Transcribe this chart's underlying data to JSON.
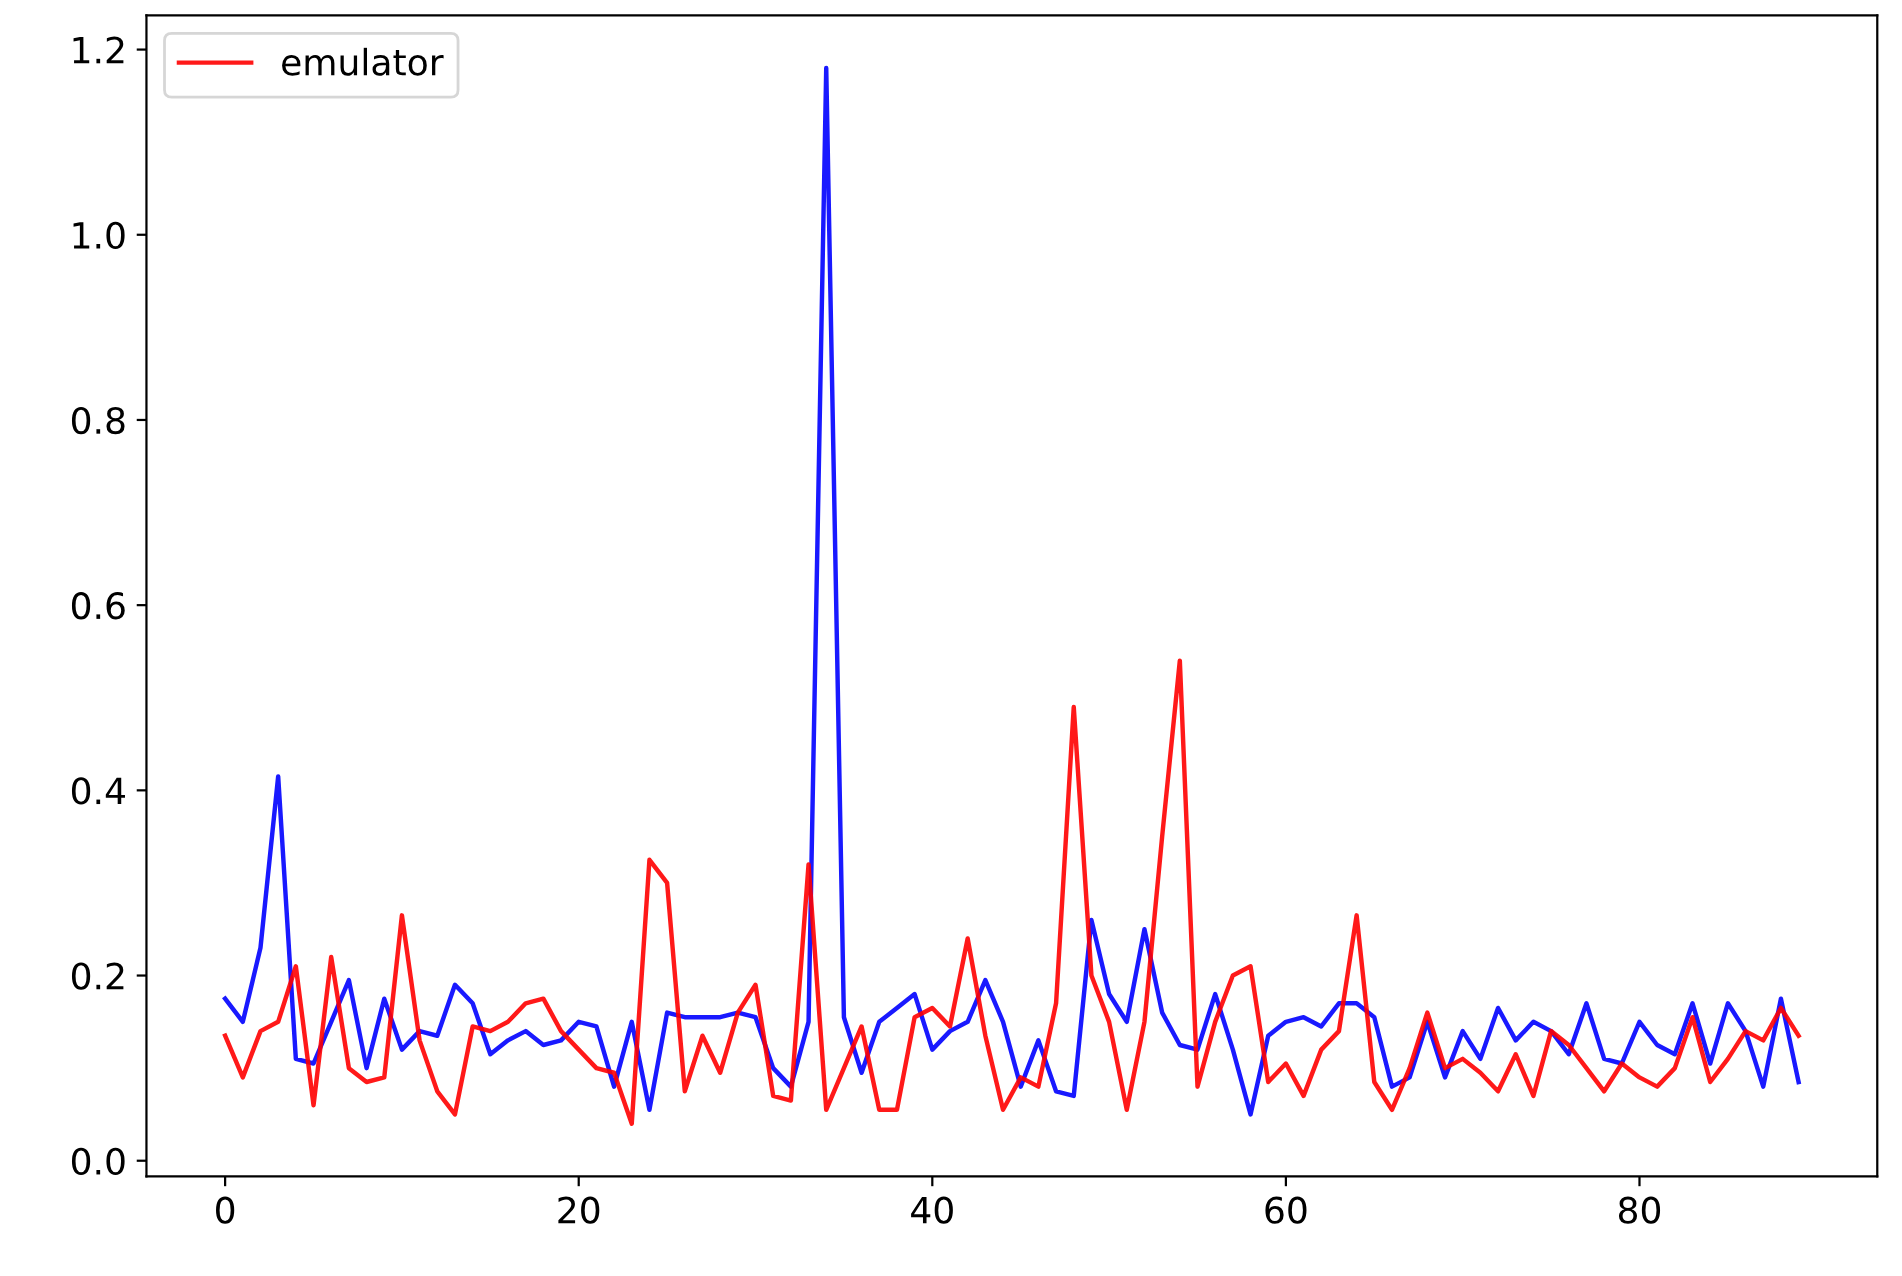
{
  "chart_data": {
    "type": "line",
    "x": [
      0,
      1,
      2,
      3,
      4,
      5,
      6,
      7,
      8,
      9,
      10,
      11,
      12,
      13,
      14,
      15,
      16,
      17,
      18,
      19,
      20,
      21,
      22,
      23,
      24,
      25,
      26,
      27,
      28,
      29,
      30,
      31,
      32,
      33,
      34,
      35,
      36,
      37,
      38,
      39,
      40,
      41,
      42,
      43,
      44,
      45,
      46,
      47,
      48,
      49,
      50,
      51,
      52,
      53,
      54,
      55,
      56,
      57,
      58,
      59,
      60,
      61,
      62,
      63,
      64,
      65,
      66,
      67,
      68,
      69,
      70,
      71,
      72,
      73,
      74,
      75,
      76,
      77,
      78,
      79,
      80,
      81,
      82,
      83,
      84,
      85,
      86,
      87,
      88,
      89
    ],
    "series": [
      {
        "color": "#0000ff",
        "values": [
          0.175,
          0.15,
          0.23,
          0.415,
          0.11,
          0.105,
          0.15,
          0.195,
          0.1,
          0.175,
          0.12,
          0.14,
          0.135,
          0.19,
          0.17,
          0.115,
          0.13,
          0.14,
          0.125,
          0.13,
          0.15,
          0.145,
          0.08,
          0.15,
          0.055,
          0.16,
          0.155,
          0.155,
          0.155,
          0.16,
          0.155,
          0.1,
          0.08,
          0.15,
          1.18,
          0.155,
          0.095,
          0.15,
          0.165,
          0.18,
          0.12,
          0.14,
          0.15,
          0.195,
          0.15,
          0.08,
          0.13,
          0.075,
          0.07,
          0.26,
          0.18,
          0.15,
          0.25,
          0.16,
          0.125,
          0.12,
          0.18,
          0.12,
          0.05,
          0.135,
          0.15,
          0.155,
          0.145,
          0.17,
          0.17,
          0.155,
          0.08,
          0.09,
          0.15,
          0.09,
          0.14,
          0.11,
          0.165,
          0.13,
          0.15,
          0.14,
          0.115,
          0.17,
          0.11,
          0.105,
          0.15,
          0.125,
          0.115,
          0.17,
          0.105,
          0.17,
          0.14,
          0.08,
          0.175,
          0.085
        ]
      },
      {
        "name": "emulator",
        "color": "#ff0000",
        "values": [
          0.135,
          0.09,
          0.14,
          0.15,
          0.21,
          0.06,
          0.22,
          0.1,
          0.085,
          0.09,
          0.265,
          0.13,
          0.075,
          0.05,
          0.145,
          0.14,
          0.15,
          0.17,
          0.175,
          0.14,
          0.12,
          0.1,
          0.095,
          0.04,
          0.325,
          0.3,
          0.075,
          0.135,
          0.095,
          0.16,
          0.19,
          0.07,
          0.065,
          0.32,
          0.055,
          0.1,
          0.145,
          0.055,
          0.055,
          0.155,
          0.165,
          0.145,
          0.24,
          0.135,
          0.055,
          0.09,
          0.08,
          0.17,
          0.49,
          0.2,
          0.15,
          0.055,
          0.15,
          0.35,
          0.54,
          0.08,
          0.15,
          0.2,
          0.21,
          0.085,
          0.105,
          0.07,
          0.12,
          0.14,
          0.265,
          0.085,
          0.055,
          0.1,
          0.16,
          0.1,
          0.11,
          0.095,
          0.075,
          0.115,
          0.07,
          0.14,
          0.125,
          0.1,
          0.075,
          0.105,
          0.09,
          0.08,
          0.1,
          0.155,
          0.085,
          0.11,
          0.14,
          0.13,
          0.165,
          0.135
        ]
      }
    ],
    "xlim": [
      -4.45,
      93.45
    ],
    "ylim": [
      -0.017,
      1.237
    ],
    "xticks": [
      0,
      20,
      40,
      60,
      80
    ],
    "yticks": [
      {
        "value": 0,
        "label": "0.0"
      },
      0.2,
      0.4,
      0.6,
      0.8,
      {
        "value": 1,
        "label": "1.0"
      },
      1.2
    ],
    "grid": false,
    "legend": "top left"
  }
}
